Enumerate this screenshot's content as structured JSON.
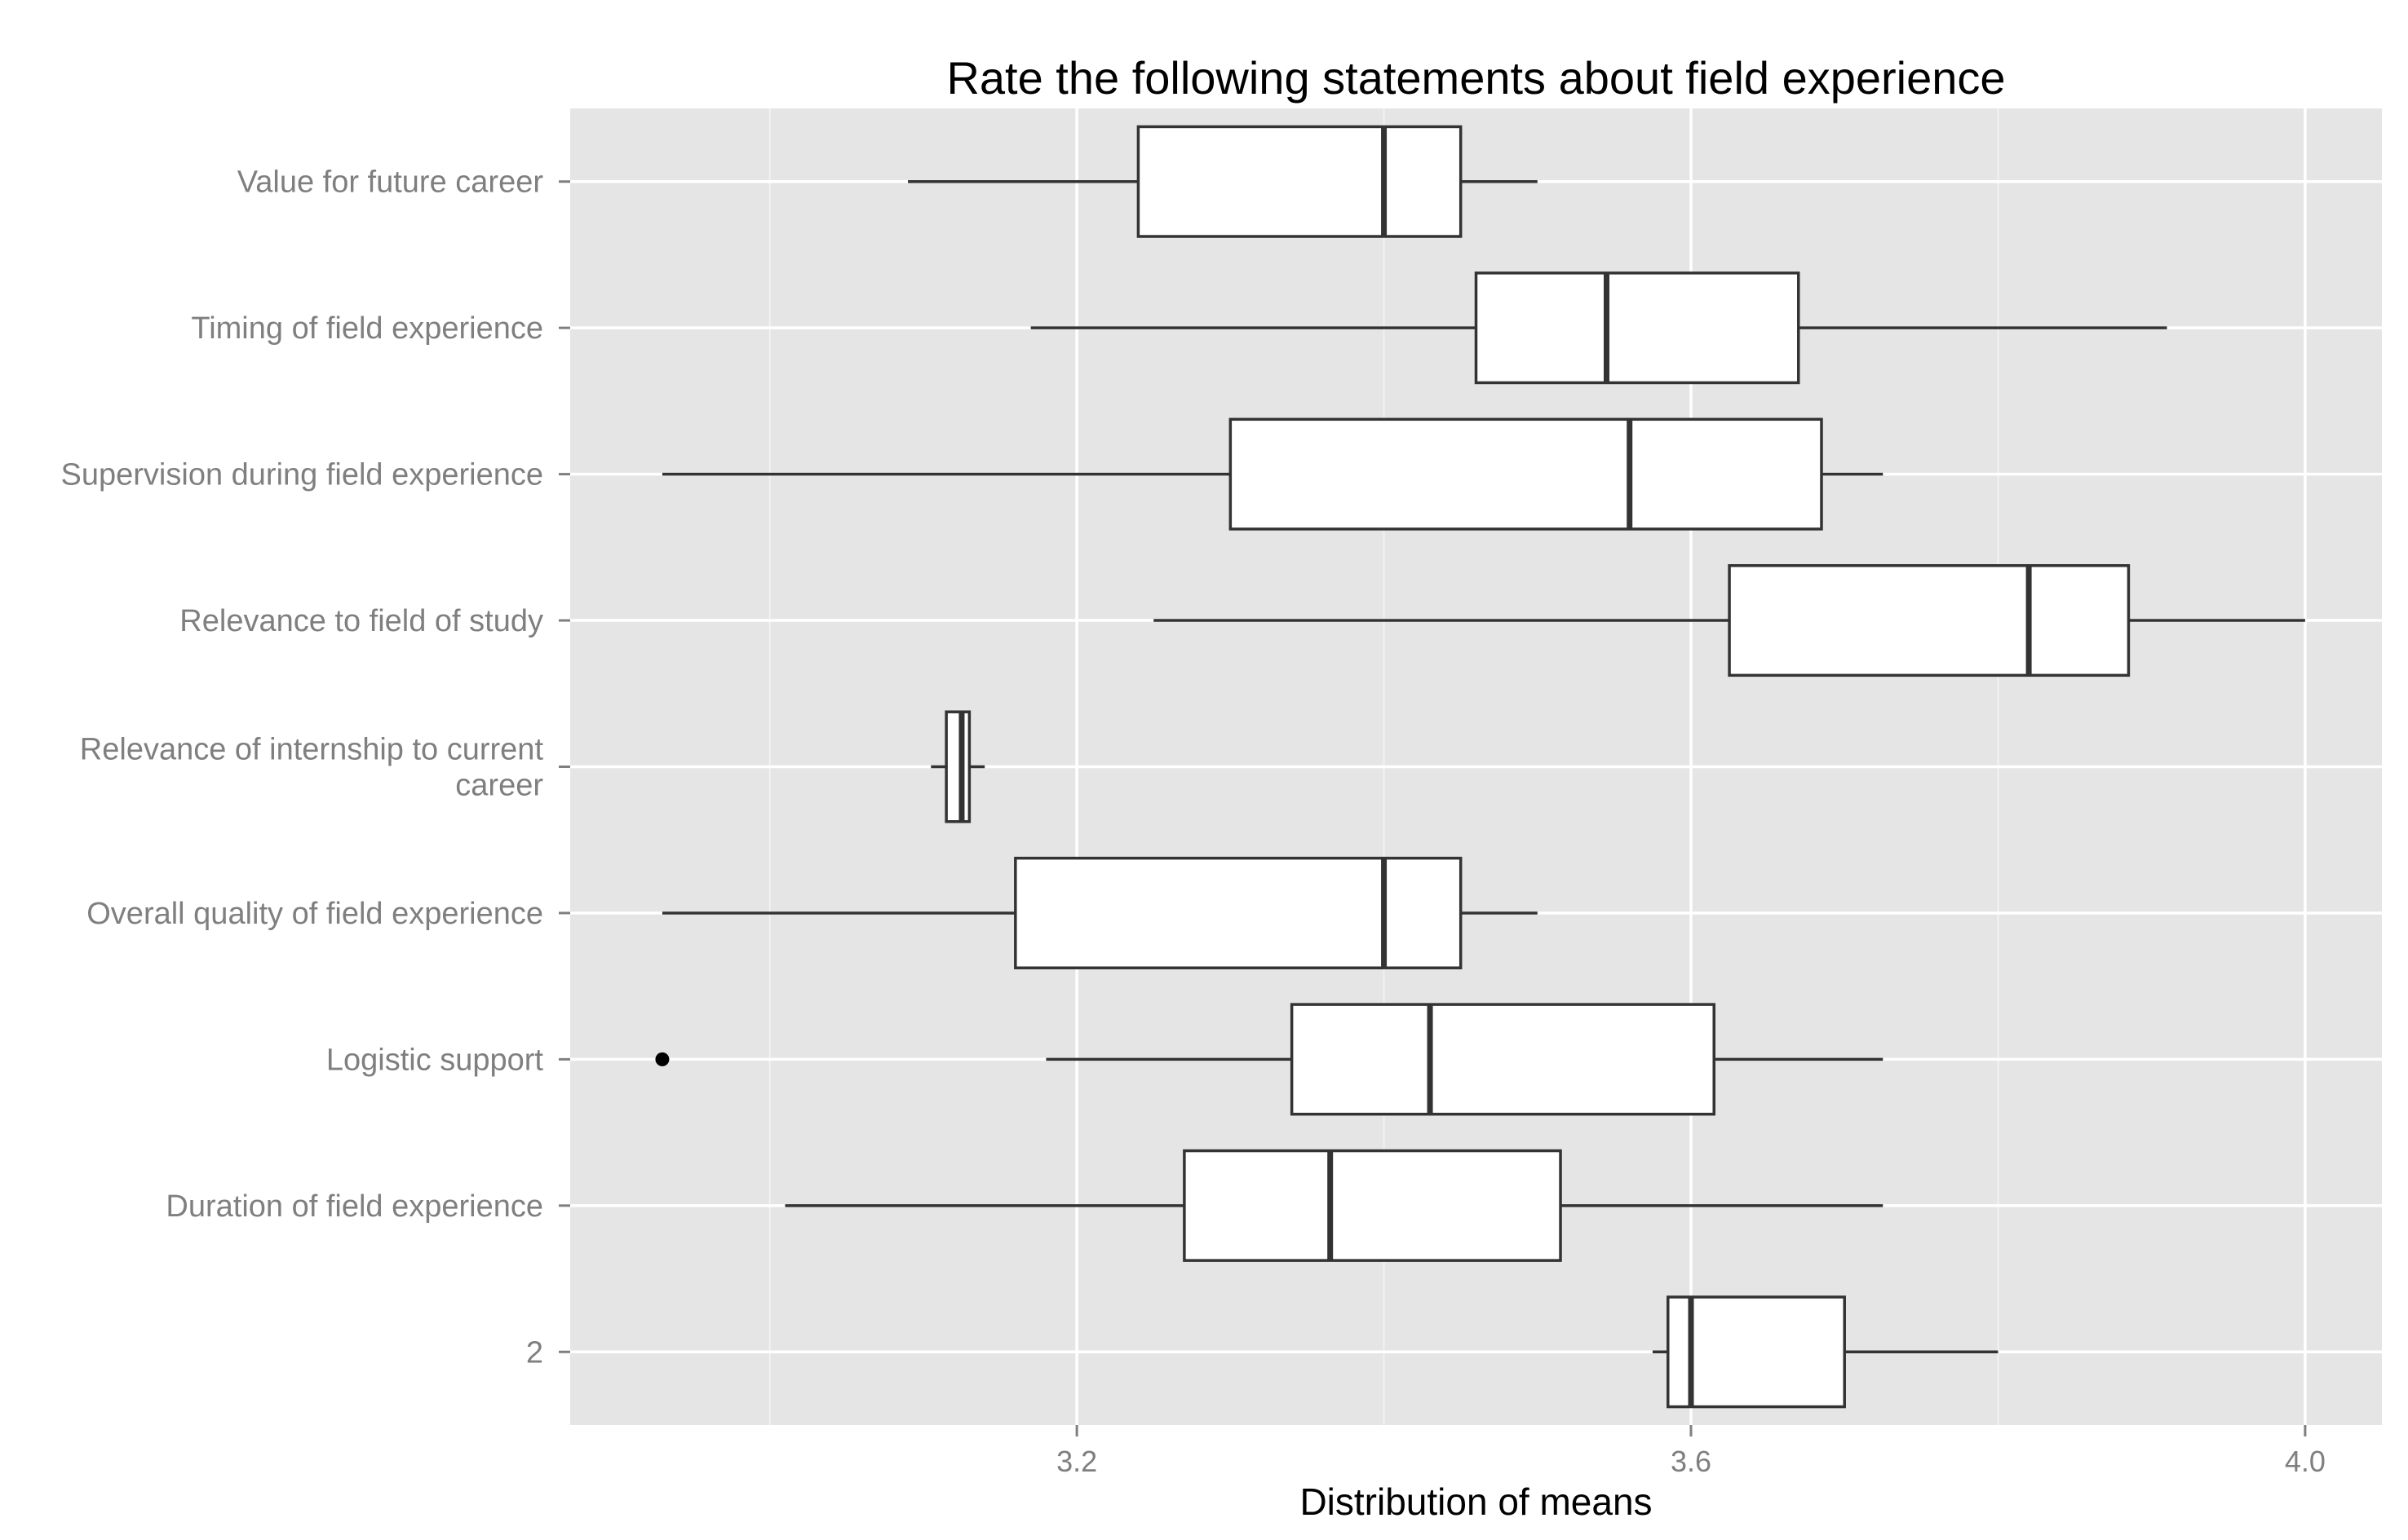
{
  "chart_data": {
    "type": "boxplot",
    "orientation": "horizontal",
    "title": "Rate the following statements about field experience",
    "xlabel": "Distribution of means",
    "ylabel": "",
    "xlim": [
      2.87,
      4.05
    ],
    "xticks": [
      3.2,
      3.6,
      4.0
    ],
    "xtick_labels": [
      "3.2",
      "3.6",
      "4.0"
    ],
    "minor_xticks": [
      3.0,
      3.4,
      3.8
    ],
    "grid": true,
    "colors": {
      "panel": "#e5e5e5",
      "grid": "#ffffff",
      "box_fill": "#ffffff",
      "box_stroke": "#333333",
      "outlier": "#000000"
    },
    "categories": [
      "Value for future career",
      "Timing of field experience",
      "Supervision during field experience",
      "Relevance to field of study",
      "Relevance of internship to current career",
      "Overall quality of field experience",
      "Logistic support",
      "Duration of field experience",
      "2"
    ],
    "category_lines": [
      [
        "Value for future career"
      ],
      [
        "Timing of field experience"
      ],
      [
        "Supervision during field experience"
      ],
      [
        "Relevance to field of study"
      ],
      [
        "Relevance of internship to current",
        "career"
      ],
      [
        "Overall quality of field experience"
      ],
      [
        "Logistic support"
      ],
      [
        "Duration of field experience"
      ],
      [
        "2"
      ]
    ],
    "boxes": [
      {
        "category": "Value for future career",
        "whisker_low": 3.09,
        "q1": 3.24,
        "median": 3.4,
        "q3": 3.45,
        "whisker_high": 3.5,
        "outliers": []
      },
      {
        "category": "Timing of field experience",
        "whisker_low": 3.17,
        "q1": 3.46,
        "median": 3.545,
        "q3": 3.67,
        "whisker_high": 3.91,
        "outliers": []
      },
      {
        "category": "Supervision during field experience",
        "whisker_low": 2.93,
        "q1": 3.3,
        "median": 3.56,
        "q3": 3.685,
        "whisker_high": 3.725,
        "outliers": []
      },
      {
        "category": "Relevance to field of study",
        "whisker_low": 3.25,
        "q1": 3.625,
        "median": 3.82,
        "q3": 3.885,
        "whisker_high": 4.0,
        "outliers": []
      },
      {
        "category": "Relevance of internship to current career",
        "whisker_low": 3.105,
        "q1": 3.115,
        "median": 3.125,
        "q3": 3.13,
        "whisker_high": 3.14,
        "outliers": []
      },
      {
        "category": "Overall quality of field experience",
        "whisker_low": 2.93,
        "q1": 3.16,
        "median": 3.4,
        "q3": 3.45,
        "whisker_high": 3.5,
        "outliers": []
      },
      {
        "category": "Logistic support",
        "whisker_low": 3.18,
        "q1": 3.34,
        "median": 3.43,
        "q3": 3.615,
        "whisker_high": 3.725,
        "outliers": [
          2.93
        ]
      },
      {
        "category": "Duration of field experience",
        "whisker_low": 3.01,
        "q1": 3.27,
        "median": 3.365,
        "q3": 3.515,
        "whisker_high": 3.725,
        "outliers": []
      },
      {
        "category": "2",
        "whisker_low": 3.575,
        "q1": 3.585,
        "median": 3.6,
        "q3": 3.7,
        "whisker_high": 3.8,
        "outliers": []
      }
    ]
  }
}
